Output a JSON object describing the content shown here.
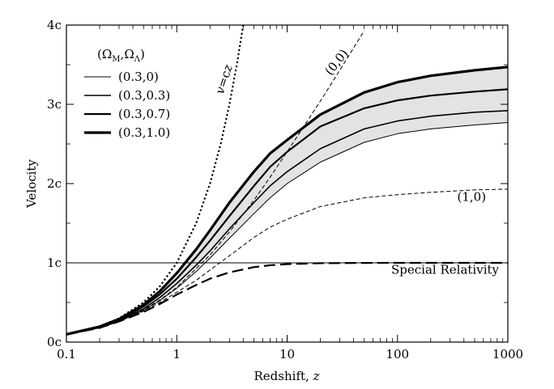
{
  "chart_data": {
    "type": "line",
    "title": "",
    "xlabel": "Redshift, ",
    "xlabel_var": "z",
    "ylabel": "Velocity",
    "xscale": "log",
    "xlim": [
      0.1,
      1000
    ],
    "ylim": [
      0,
      4
    ],
    "xticks": [
      {
        "value": 0.1,
        "label": "0.1"
      },
      {
        "value": 1,
        "label": "1"
      },
      {
        "value": 10,
        "label": "10"
      },
      {
        "value": 100,
        "label": "100"
      },
      {
        "value": 1000,
        "label": "1000"
      }
    ],
    "yticks": [
      {
        "value": 0,
        "label": "0c"
      },
      {
        "value": 1,
        "label": "1c"
      },
      {
        "value": 2,
        "label": "2c"
      },
      {
        "value": 3,
        "label": "3c"
      },
      {
        "value": 4,
        "label": "4c"
      }
    ],
    "grid": false,
    "legend": {
      "placement": "top-left",
      "title": "(Ω_M,Ω_Λ)",
      "title_parts": {
        "open": "(Ω",
        "sub1": "M",
        "comma": ",Ω",
        "sub2": "Λ",
        "close": ")"
      },
      "entries": [
        {
          "label": "(0.3,0)",
          "line_width": 1
        },
        {
          "label": "(0.3,0.3)",
          "line_width": 1.6
        },
        {
          "label": "(0.3,0.7)",
          "line_width": 2.2
        },
        {
          "label": "(0.3,1.0)",
          "line_width": 3.2
        }
      ]
    },
    "shaded_band": {
      "between": [
        "(0.3,0)",
        "(0.3,1.0)"
      ],
      "color": "#e3e3e3"
    },
    "reference_line": {
      "y": 1,
      "style": "solid"
    },
    "series": [
      {
        "name": "(0.3,0)",
        "style": "solid",
        "line_width": 1,
        "x": [
          0.1,
          0.2,
          0.3,
          0.5,
          0.7,
          1,
          1.5,
          2,
          3,
          5,
          7,
          10,
          20,
          50,
          100,
          200,
          500,
          1000
        ],
        "y": [
          0.095,
          0.18,
          0.26,
          0.4,
          0.52,
          0.68,
          0.89,
          1.06,
          1.31,
          1.62,
          1.82,
          2.0,
          2.27,
          2.52,
          2.63,
          2.69,
          2.74,
          2.77
        ]
      },
      {
        "name": "(0.3,0.3)",
        "style": "solid",
        "line_width": 1.6,
        "x": [
          0.1,
          0.2,
          0.3,
          0.5,
          0.7,
          1,
          1.5,
          2,
          3,
          5,
          7,
          10,
          20,
          50,
          100,
          200,
          500,
          1000
        ],
        "y": [
          0.096,
          0.185,
          0.27,
          0.42,
          0.56,
          0.74,
          0.97,
          1.15,
          1.43,
          1.76,
          1.97,
          2.15,
          2.44,
          2.69,
          2.79,
          2.85,
          2.9,
          2.92
        ]
      },
      {
        "name": "(0.3,0.7)",
        "style": "solid",
        "line_width": 2.2,
        "x": [
          0.1,
          0.2,
          0.3,
          0.5,
          0.7,
          1,
          1.5,
          2,
          3,
          5,
          7,
          10,
          20,
          50,
          100,
          200,
          500,
          1000
        ],
        "y": [
          0.097,
          0.19,
          0.28,
          0.45,
          0.6,
          0.8,
          1.07,
          1.28,
          1.59,
          1.97,
          2.21,
          2.4,
          2.72,
          2.95,
          3.05,
          3.11,
          3.16,
          3.19
        ]
      },
      {
        "name": "(0.3,1.0)",
        "style": "solid",
        "line_width": 3.2,
        "x": [
          0.1,
          0.2,
          0.3,
          0.5,
          0.7,
          1,
          1.5,
          2,
          3,
          5,
          7,
          10,
          20,
          50,
          100,
          200,
          500,
          1000
        ],
        "y": [
          0.098,
          0.195,
          0.29,
          0.47,
          0.64,
          0.87,
          1.17,
          1.41,
          1.76,
          2.15,
          2.38,
          2.55,
          2.87,
          3.15,
          3.28,
          3.36,
          3.43,
          3.47
        ]
      },
      {
        "name": "v=cz",
        "style": "dotted",
        "line_width": 2.4,
        "x": [
          0.1,
          0.2,
          0.3,
          0.5,
          0.7,
          1,
          1.5,
          2,
          2.5,
          3,
          3.5,
          4
        ],
        "y": [
          0.1,
          0.2,
          0.3,
          0.5,
          0.7,
          1.0,
          1.5,
          2.0,
          2.5,
          3.0,
          3.5,
          4.0
        ]
      },
      {
        "name": "(0,0)",
        "style": "dashed",
        "line_width": 1,
        "x": [
          0.1,
          0.2,
          0.3,
          0.5,
          0.7,
          1,
          2,
          3,
          5,
          7,
          10,
          20,
          30,
          50
        ],
        "y": [
          0.095,
          0.18,
          0.26,
          0.41,
          0.53,
          0.69,
          1.1,
          1.39,
          1.79,
          2.08,
          2.4,
          3.04,
          3.43,
          3.93
        ]
      },
      {
        "name": "(1,0)",
        "style": "dashed",
        "line_width": 1,
        "x": [
          0.1,
          0.2,
          0.3,
          0.5,
          0.7,
          1,
          1.5,
          2,
          3,
          5,
          7,
          10,
          20,
          50,
          100,
          200,
          500,
          1000
        ],
        "y": [
          0.095,
          0.18,
          0.26,
          0.39,
          0.5,
          0.63,
          0.78,
          0.91,
          1.09,
          1.32,
          1.45,
          1.55,
          1.71,
          1.82,
          1.86,
          1.89,
          1.92,
          1.93
        ]
      },
      {
        "name": "Special Relativity",
        "style": "dashed",
        "line_width": 2.2,
        "x": [
          0.1,
          0.2,
          0.3,
          0.5,
          0.7,
          1,
          1.5,
          2,
          3,
          5,
          7,
          10,
          20,
          50,
          100,
          1000
        ],
        "y": [
          0.095,
          0.18,
          0.26,
          0.38,
          0.48,
          0.6,
          0.72,
          0.8,
          0.88,
          0.946,
          0.969,
          0.984,
          0.996,
          0.999,
          1.0,
          1.0
        ]
      }
    ],
    "annotations": [
      {
        "text": "v=cz",
        "near_series": "v=cz",
        "x": 2.9,
        "y": 3.3,
        "rotate": -72
      },
      {
        "text": "(0,0)",
        "near_series": "(0,0)",
        "x": 30,
        "y": 3.5,
        "rotate": -52
      },
      {
        "text": "(1,0)",
        "near_series": "(1,0)",
        "x": 470,
        "y": 1.78,
        "rotate": 0
      },
      {
        "text": "Special Relativity",
        "near_series": "Special Relativity",
        "x": 270,
        "y": 0.86,
        "rotate": 0
      }
    ]
  }
}
